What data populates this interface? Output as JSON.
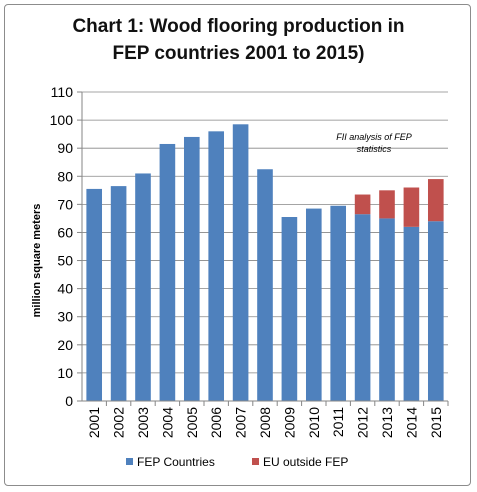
{
  "chart_data": {
    "type": "bar",
    "stacked": true,
    "title_lines": [
      "Chart 1: Wood flooring production in",
      "FEP countries 2001 to 2015)"
    ],
    "ylabel": "million square meters",
    "xlabel": "",
    "ylim": [
      0,
      110
    ],
    "yticks": [
      0,
      10,
      20,
      30,
      40,
      50,
      60,
      70,
      80,
      90,
      100,
      110
    ],
    "grid": true,
    "legend_position": "bottom",
    "annotation_lines": [
      "FII analysis of FEP",
      "statistics"
    ],
    "categories": [
      "2001",
      "2002",
      "2003",
      "2004",
      "2005",
      "2006",
      "2007",
      "2008",
      "2009",
      "2010",
      "2011",
      "2012",
      "2013",
      "2014",
      "2015"
    ],
    "series": [
      {
        "name": "FEP Countries",
        "color": "#4f81bd",
        "values": [
          75.5,
          76.5,
          81,
          91.5,
          94,
          96,
          98.5,
          82.5,
          65.5,
          68.5,
          69.5,
          66.5,
          65,
          62,
          64
        ]
      },
      {
        "name": "EU outside FEP",
        "color": "#c0504d",
        "values": [
          0,
          0,
          0,
          0,
          0,
          0,
          0,
          0,
          0,
          0,
          0,
          7,
          10,
          14,
          15
        ]
      }
    ]
  }
}
